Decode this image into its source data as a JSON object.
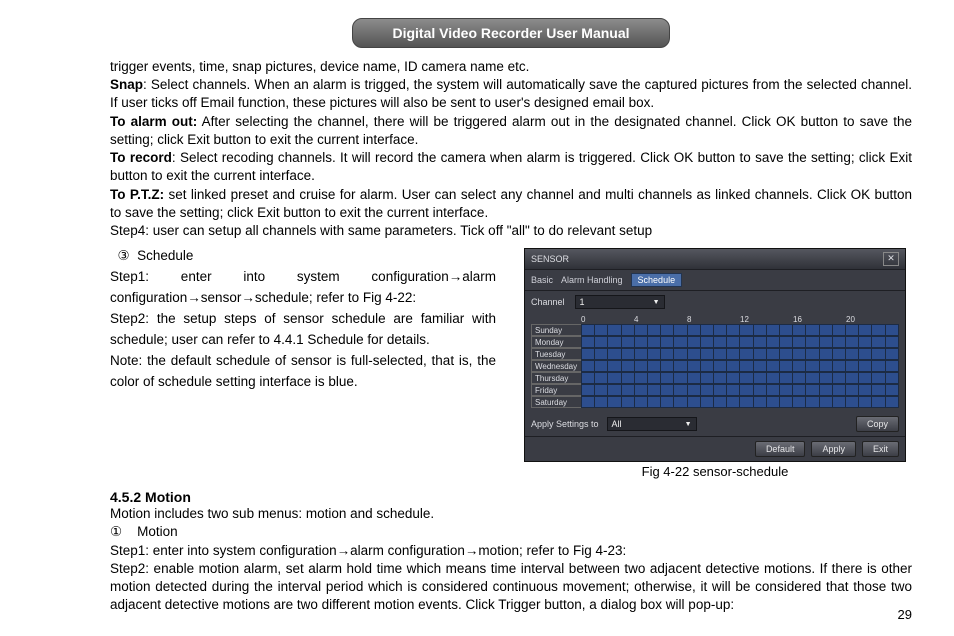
{
  "header": {
    "title": "Digital Video Recorder User Manual"
  },
  "para": {
    "line1": "trigger events, time, snap pictures, device name, ID camera name etc.",
    "snap_label": "Snap",
    "snap_text": ": Select channels. When an alarm is trigged, the system will automatically save the captured pictures from the selected channel. If user ticks off Email function, these pictures will also be sent to user's designed email box.",
    "alarm_label": "To alarm out:",
    "alarm_text": " After selecting the channel, there will be triggered alarm out in the designated channel. Click OK button to save the setting; click Exit button to exit the current interface.",
    "record_label": "To record",
    "record_text": ": Select recoding channels. It will record the camera when alarm is triggered. Click OK button to save the setting; click Exit button to exit the current interface.",
    "ptz_label": "To P.T.Z:",
    "ptz_text": " set linked preset and cruise for alarm. User can select any channel and multi channels as linked channels. Click OK button to save the setting; click Exit button to exit the current interface.",
    "step4": "Step4: user can setup all channels with same parameters. Tick off \"all\" to do relevant setup"
  },
  "schedule": {
    "circled3": "③",
    "sched_label": "Schedule",
    "step1": "Step1: enter into system configuration→alarm configuration→sensor→schedule; refer to Fig 4-22:",
    "step2": "Step2: the setup steps of sensor schedule are familiar with schedule; user can refer to 4.4.1 Schedule for details.",
    "note": "Note: the default schedule of sensor is full-selected, that is, the color of schedule setting interface is blue."
  },
  "sensor_window": {
    "title": "SENSOR",
    "tabs": [
      "Basic",
      "Alarm Handling",
      "Schedule"
    ],
    "active_tab": 2,
    "channel_label": "Channel",
    "channel_value": "1",
    "hour_ticks": [
      "0",
      "4",
      "8",
      "12",
      "16",
      "20"
    ],
    "days": [
      "Sunday",
      "Monday",
      "Tuesday",
      "Wednesday",
      "Thursday",
      "Friday",
      "Saturday"
    ],
    "cells_per_row": 24,
    "apply_label": "Apply Settings to",
    "apply_value": "All",
    "copy_label": "Copy",
    "footer_buttons": [
      "Default",
      "Apply",
      "Exit"
    ],
    "colors": {
      "cell_fill": "#2d4e8e",
      "cell_border": "#1c2b44",
      "window_bg": "#3a3c44",
      "tab_active_bg": "#4a6ea8"
    }
  },
  "fig_caption": "Fig 4-22 sensor-schedule",
  "motion": {
    "heading": "4.5.2  Motion",
    "intro": "Motion includes two sub menus: motion and schedule.",
    "circled1": "①",
    "motion_label": "Motion",
    "step1": "Step1: enter into system configuration→alarm configuration→motion; refer to Fig 4-23:",
    "step2": "Step2: enable motion alarm, set alarm hold time which means time interval between two adjacent detective motions. If there is other motion detected during the interval period which is considered continuous movement; otherwise, it will be considered that those two adjacent detective motions are two different motion events. Click Trigger button, a dialog box will pop-up:"
  },
  "page_number": "29"
}
